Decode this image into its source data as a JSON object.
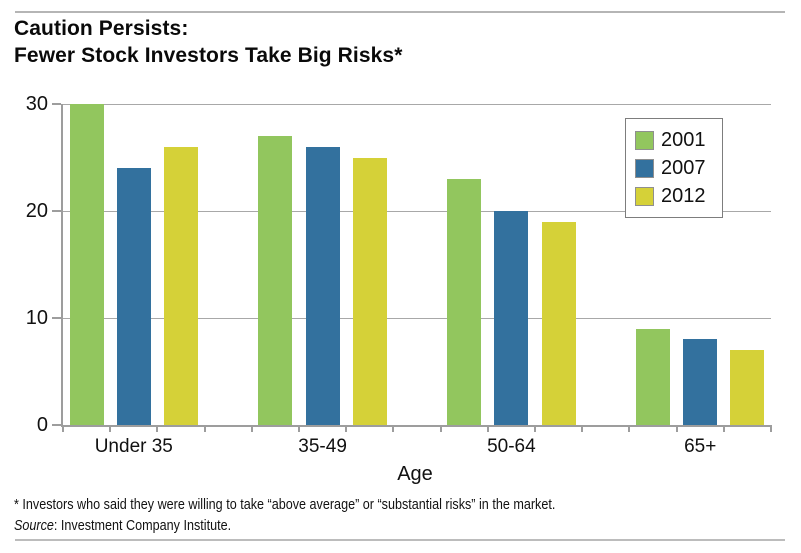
{
  "header": {
    "title_line1": "Caution Persists:",
    "title_line2": "Fewer Stock Investors Take Big Risks*"
  },
  "chart_data": {
    "type": "bar",
    "categories": [
      "Under 35",
      "35-49",
      "50-64",
      "65+"
    ],
    "series": [
      {
        "name": "2001",
        "color": "#92C65E",
        "values": [
          30,
          27,
          23,
          9
        ]
      },
      {
        "name": "2007",
        "color": "#33719E",
        "values": [
          24,
          26,
          20,
          8
        ]
      },
      {
        "name": "2012",
        "color": "#D5D138",
        "values": [
          26,
          25,
          19,
          7
        ]
      }
    ],
    "title": "Caution Persists: Fewer Stock Investors Take Big Risks*",
    "xlabel": "Age",
    "ylabel": "",
    "ylim": [
      0,
      30
    ],
    "yticks": [
      0,
      10,
      20,
      30
    ],
    "grid": true,
    "legend_position": "top-right"
  },
  "footnote": {
    "line1": "* Investors who said they were willing to take “above average” or “substantial risks” in the market.",
    "source_label": "Source",
    "source_rest": ": Investment Company Institute."
  },
  "colors": {
    "bar_2001": "#92C65E",
    "bar_2007": "#33719E",
    "bar_2012": "#D5D138",
    "gridline": "#A8A8A8",
    "axis": "#9D9D9D",
    "text": "#111111"
  }
}
